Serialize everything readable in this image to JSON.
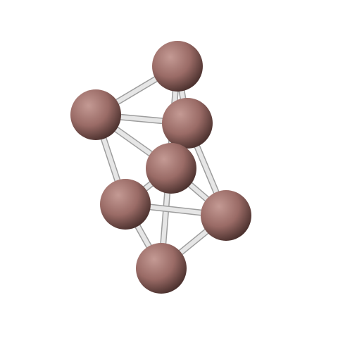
{
  "molecule": {
    "atom_color": "#9a6b66",
    "atom_highlight": "#c49a94",
    "atom_shadow": "#4a302d",
    "bond_color": "#e6e6e6",
    "bond_edge": "#9d9d9d"
  }
}
